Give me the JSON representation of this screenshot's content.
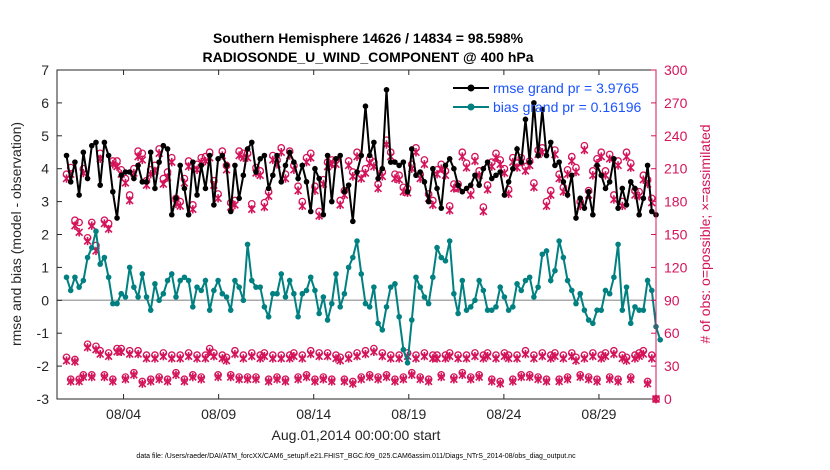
{
  "chart_data": {
    "type": "line",
    "title": "Southern Hemisphere 14626 / 14834 = 98.598%",
    "subtitle": "RADIOSONDE_U_WIND_COMPONENT @ 400 hPa",
    "xlabel": "Aug.01,2014 00:00:00 start",
    "ylabel": "rmse and bias (model - observation)",
    "ylabel_right": "# of obs: o=possible; ×=assimilated",
    "footnote": "data file: /Users/raeder/DAI/ATM_forcXX/CAM6_setup/f.e21.FHIST_BGC.f09_025.CAM6assim.011/Diags_NTrS_2014-08/obs_diag_output.nc",
    "xlim": [
      0.5,
      32.0
    ],
    "ylim": [
      -3,
      7
    ],
    "ylim_right": [
      0,
      300
    ],
    "yticks": [
      -3,
      -2,
      -1,
      0,
      1,
      2,
      3,
      4,
      5,
      6,
      7
    ],
    "yticks_right": [
      0,
      30,
      60,
      90,
      120,
      150,
      180,
      210,
      240,
      270,
      300
    ],
    "xticks": [
      {
        "value": 4,
        "label": "08/04"
      },
      {
        "value": 9,
        "label": "08/09"
      },
      {
        "value": 14,
        "label": "08/14"
      },
      {
        "value": 19,
        "label": "08/19"
      },
      {
        "value": 24,
        "label": "08/24"
      },
      {
        "value": 29,
        "label": "08/29"
      }
    ],
    "legend_position": "top-right",
    "series": [
      {
        "name": "rmse grand pr = 3.9765",
        "color": "#000000",
        "values": [
          4.4,
          3.6,
          4.2,
          3.2,
          4.5,
          3.7,
          4.7,
          4.8,
          3.5,
          4.8,
          4.4,
          3.3,
          2.5,
          3.8,
          3.9,
          3.9,
          3.7,
          4.1,
          3.6,
          3.6,
          4.5,
          3.4,
          4.2,
          4.7,
          4.6,
          2.6,
          3.1,
          4.1,
          3.4,
          2.6,
          4.2,
          3.2,
          4.1,
          3.4,
          4.4,
          2.9,
          4.3,
          4.4,
          4.1,
          2.7,
          4.1,
          3.1,
          3.8,
          4.6,
          4.8,
          3.9,
          4.3,
          4.4,
          3.4,
          3.8,
          4.4,
          3.6,
          4.1,
          4.5,
          4.2,
          3.7,
          4.1,
          3.6,
          2.7,
          4.0,
          3.7,
          2.6,
          4.4,
          3.0,
          4.3,
          4.4,
          3.3,
          3.5,
          2.4,
          3.9,
          4.4,
          5.9,
          4.4,
          4.8,
          3.7,
          4.0,
          6.4,
          4.2,
          4.2,
          4.1,
          4.2,
          3.3,
          4.6,
          3.8,
          3.9,
          3.6,
          3.0,
          4.0,
          3.4,
          2.8,
          4.1,
          4.3,
          4.0,
          3.5,
          3.3,
          3.4,
          3.5,
          3.8,
          3.5,
          4.0,
          4.2,
          3.7,
          3.8,
          3.9,
          3.2,
          3.6,
          4.0,
          4.6,
          4.2,
          5.5,
          4.2,
          6.0,
          4.4,
          5.8,
          4.4,
          4.8,
          4.1,
          4.2,
          3.6,
          3.2,
          3.8,
          2.5,
          3.1,
          2.8,
          3.3,
          2.6,
          4.1,
          3.8,
          3.4,
          3.6,
          4.3,
          2.8,
          3.4,
          2.9,
          3.6,
          3.4,
          2.6,
          3.1,
          4.1,
          2.7,
          2.6
        ]
      },
      {
        "name": "bias grand pr = 0.16196",
        "color": "#008080",
        "values": [
          0.7,
          0.3,
          0.7,
          0.4,
          0.6,
          1.3,
          1.6,
          2.1,
          1.1,
          1.3,
          0.7,
          -0.1,
          -0.1,
          0.2,
          0.1,
          1.0,
          0.4,
          0.1,
          0.8,
          0.1,
          -0.3,
          0.5,
          0.0,
          0.2,
          0.6,
          0.8,
          0.1,
          0.6,
          0.7,
          0.6,
          -0.2,
          0.4,
          0.3,
          0.6,
          -0.3,
          0.3,
          0.6,
          0.2,
          0.1,
          -0.3,
          0.6,
          0.4,
          0.0,
          1.7,
          0.6,
          0.4,
          0.4,
          -0.2,
          -0.5,
          0.2,
          0.2,
          0.8,
          0.1,
          0.6,
          0.2,
          -0.5,
          0.2,
          0.3,
          0.7,
          0.3,
          -0.4,
          0.1,
          -0.6,
          -0.1,
          0.8,
          -0.2,
          0.2,
          1.0,
          1.3,
          1.8,
          0.8,
          -0.1,
          -0.2,
          0.4,
          -0.7,
          -0.9,
          -0.2,
          0.4,
          0.5,
          -0.5,
          -1.5,
          -1.9,
          -0.6,
          0.7,
          0.4,
          0.1,
          -0.1,
          0.7,
          1.6,
          1.3,
          1.2,
          1.8,
          0.2,
          -0.4,
          0.6,
          -0.3,
          -0.2,
          0.0,
          0.6,
          0.3,
          -0.3,
          -0.3,
          -0.2,
          0.4,
          0.1,
          -0.3,
          -0.2,
          0.5,
          0.3,
          0.6,
          0.7,
          0.1,
          0.4,
          1.4,
          1.5,
          0.6,
          0.9,
          1.8,
          1.3,
          0.6,
          0.3,
          -0.1,
          0.2,
          -0.3,
          -0.6,
          -0.7,
          -0.3,
          -0.3,
          0.3,
          0.2,
          0.7,
          1.7,
          -0.3,
          0.4,
          -0.7,
          -0.2,
          -0.3,
          -0.3,
          0.6,
          0.3,
          -0.8,
          -1.2
        ]
      }
    ],
    "obs_possible": [
      205,
      211,
      163,
      161,
      210,
      147,
      161,
      140,
      224,
      163,
      160,
      217,
      217,
      209,
      201,
      186,
      210,
      226,
      224,
      199,
      209,
      213,
      228,
      201,
      207,
      220,
      183,
      180,
      201,
      217,
      177,
      214,
      220,
      221,
      225,
      199,
      187,
      226,
      213,
      179,
      181,
      226,
      224,
      224,
      178,
      211,
      208,
      179,
      189,
      222,
      218,
      229,
      205,
      226,
      213,
      194,
      180,
      220,
      224,
      194,
      171,
      200,
      216,
      218,
      218,
      181,
      190,
      217,
      207,
      225,
      205,
      210,
      219,
      216,
      196,
      207,
      236,
      225,
      205,
      204,
      193,
      192,
      214,
      229,
      205,
      218,
      187,
      181,
      209,
      214,
      208,
      176,
      196,
      196,
      225,
      215,
      190,
      221,
      208,
      175,
      195,
      216,
      224,
      218,
      210,
      191,
      220,
      215,
      220,
      212,
      217,
      197,
      227,
      229,
      180,
      190,
      227,
      205,
      193,
      209,
      221,
      211,
      180,
      231,
      190,
      208,
      219,
      225,
      208,
      223,
      186,
      217,
      180,
      225,
      215,
      190,
      189,
      204,
      200,
      183,
      0
    ],
    "obs_assimilated": [
      201,
      205,
      158,
      152,
      206,
      144,
      158,
      135,
      219,
      160,
      155,
      214,
      212,
      205,
      197,
      181,
      206,
      221,
      218,
      195,
      205,
      208,
      224,
      196,
      202,
      216,
      178,
      176,
      197,
      212,
      173,
      209,
      216,
      217,
      220,
      195,
      183,
      222,
      209,
      175,
      177,
      222,
      220,
      220,
      173,
      206,
      204,
      175,
      185,
      218,
      214,
      225,
      201,
      222,
      209,
      190,
      176,
      216,
      220,
      190,
      167,
      196,
      212,
      214,
      214,
      177,
      186,
      213,
      203,
      221,
      201,
      206,
      215,
      212,
      192,
      203,
      232,
      221,
      201,
      200,
      189,
      188,
      210,
      225,
      201,
      214,
      183,
      177,
      205,
      210,
      204,
      172,
      192,
      192,
      221,
      211,
      186,
      217,
      204,
      171,
      191,
      212,
      220,
      214,
      206,
      187,
      216,
      211,
      216,
      208,
      213,
      193,
      223,
      225,
      176,
      186,
      223,
      201,
      189,
      205,
      217,
      207,
      176,
      227,
      186,
      204,
      215,
      221,
      204,
      219,
      182,
      213,
      176,
      221,
      211,
      186,
      185,
      200,
      196,
      179,
      0
    ],
    "obs_low_possible": [
      38,
      18,
      36,
      18,
      22,
      50,
      22,
      48,
      44,
      22,
      42,
      18,
      46,
      46,
      20,
      44,
      24,
      44,
      16,
      40,
      18,
      40,
      20,
      42,
      18,
      40,
      24,
      40,
      18,
      42,
      22,
      40,
      20,
      40,
      46,
      42,
      22,
      40,
      38,
      22,
      44,
      20,
      40,
      20,
      42,
      20,
      40,
      42,
      18,
      40,
      20,
      40,
      18,
      40,
      42,
      20,
      40,
      22,
      44,
      18,
      42,
      20,
      42,
      18,
      40,
      38,
      18,
      40,
      16,
      42,
      20,
      44,
      22,
      46,
      20,
      42,
      22,
      40,
      18,
      40,
      20,
      42,
      24,
      40,
      20,
      42,
      18,
      40,
      40,
      22,
      40,
      42,
      20,
      40,
      24,
      40,
      20,
      42,
      22,
      40,
      42,
      18,
      40,
      16,
      42,
      40,
      18,
      40,
      22,
      44,
      22,
      40,
      20,
      42,
      18,
      40,
      42,
      18,
      40,
      20,
      42,
      38,
      22,
      40,
      20,
      42,
      18,
      40,
      42,
      20,
      44,
      18,
      40,
      38,
      20,
      40,
      42,
      44,
      16,
      40,
      0
    ],
    "obs_low_assimilated": [
      35,
      16,
      34,
      16,
      20,
      47,
      20,
      45,
      41,
      20,
      39,
      16,
      43,
      43,
      18,
      41,
      22,
      41,
      14,
      37,
      16,
      37,
      18,
      39,
      16,
      37,
      22,
      37,
      16,
      39,
      20,
      37,
      18,
      37,
      43,
      39,
      20,
      37,
      35,
      20,
      41,
      18,
      37,
      18,
      39,
      18,
      37,
      39,
      16,
      37,
      18,
      37,
      16,
      37,
      39,
      18,
      37,
      20,
      41,
      16,
      39,
      18,
      39,
      16,
      37,
      35,
      16,
      37,
      14,
      39,
      18,
      41,
      20,
      43,
      18,
      39,
      20,
      37,
      16,
      37,
      18,
      39,
      22,
      37,
      18,
      39,
      16,
      37,
      37,
      20,
      37,
      39,
      18,
      37,
      22,
      37,
      18,
      39,
      20,
      37,
      39,
      16,
      37,
      14,
      39,
      37,
      16,
      37,
      20,
      41,
      20,
      37,
      18,
      39,
      16,
      37,
      39,
      16,
      37,
      18,
      39,
      35,
      20,
      37,
      18,
      39,
      16,
      37,
      39,
      18,
      41,
      16,
      37,
      35,
      18,
      37,
      39,
      41,
      14,
      37,
      0
    ]
  }
}
